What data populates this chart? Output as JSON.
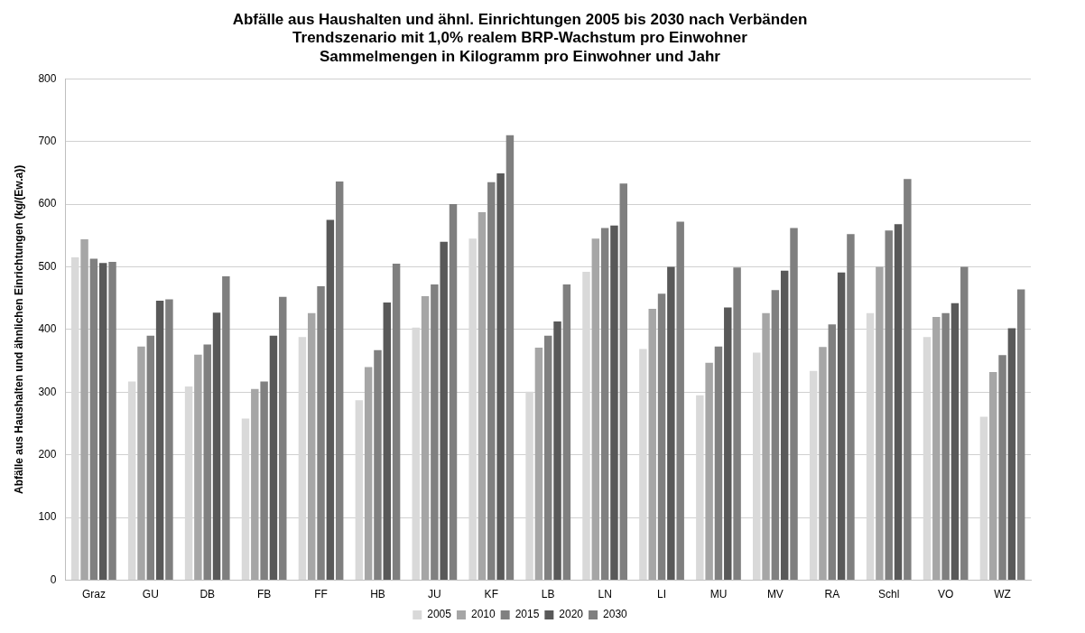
{
  "chart_data": {
    "type": "bar",
    "title": [
      "Abfälle aus Haushalten und ähnl. Einrichtungen 2005 bis 2030 nach Verbänden",
      "Trendszenario mit 1,0% realem BRP-Wachstum pro Einwohner",
      "Sammelmengen in Kilogramm pro Einwohner und Jahr"
    ],
    "ylabel": "Abfälle aus Haushalten und ähnlichen Einrichtungen (kg/(Ew.a))",
    "categories": [
      "Graz",
      "GU",
      "DB",
      "FB",
      "FF",
      "HB",
      "JU",
      "KF",
      "LB",
      "LN",
      "LI",
      "MU",
      "MV",
      "RA",
      "Schl",
      "VO",
      "WZ"
    ],
    "series": [
      {
        "name": "2005",
        "color": "#d9d9d9",
        "values": [
          515,
          317,
          309,
          258,
          388,
          287,
          403,
          545,
          301,
          492,
          369,
          295,
          363,
          334,
          426,
          388,
          261
        ]
      },
      {
        "name": "2010",
        "color": "#a6a6a6",
        "values": [
          544,
          373,
          360,
          305,
          426,
          340,
          453,
          587,
          371,
          545,
          433,
          347,
          426,
          372,
          500,
          420,
          332
        ]
      },
      {
        "name": "2015",
        "color": "#808080",
        "values": [
          513,
          390,
          376,
          317,
          469,
          367,
          472,
          635,
          390,
          562,
          457,
          373,
          463,
          408,
          558,
          426,
          359
        ]
      },
      {
        "name": "2020",
        "color": "#595959",
        "values": [
          506,
          446,
          427,
          390,
          575,
          443,
          540,
          649,
          413,
          566,
          500,
          435,
          494,
          491,
          568,
          442,
          402
        ]
      },
      {
        "name": "2030",
        "color": "#7f7f7f",
        "values": [
          508,
          448,
          485,
          452,
          636,
          505,
          600,
          710,
          472,
          633,
          572,
          499,
          562,
          552,
          640,
          500,
          464
        ]
      }
    ],
    "ylim": [
      0,
      800
    ],
    "yticks": [
      0,
      100,
      200,
      300,
      400,
      500,
      600,
      700,
      800
    ],
    "grid": "y",
    "legend": "bottom"
  }
}
